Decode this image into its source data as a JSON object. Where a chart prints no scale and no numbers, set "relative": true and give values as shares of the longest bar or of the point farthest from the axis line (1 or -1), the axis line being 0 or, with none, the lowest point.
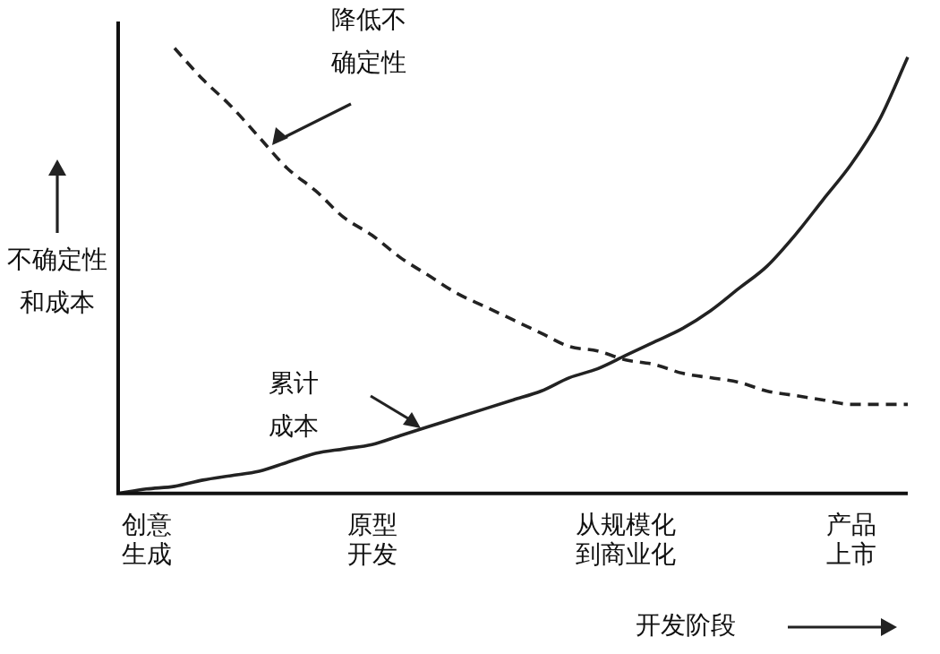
{
  "chart_data": {
    "type": "line",
    "relative": true,
    "xlabel": "开发阶段",
    "ylabel": "不确定性和成本",
    "categories": [
      null,
      "创意生成",
      null,
      null,
      null,
      null,
      null,
      null,
      null,
      "原型开发",
      null,
      null,
      null,
      null,
      null,
      null,
      null,
      null,
      "从规模化到商业化",
      null,
      null,
      null,
      null,
      null,
      null,
      null,
      "产品上市",
      null,
      null
    ],
    "series": [
      {
        "color": "#222222",
        "line_style": "dashed",
        "values": [
          null,
          null,
          1.0,
          0.93,
          0.87,
          0.8,
          0.73,
          0.68,
          0.62,
          0.58,
          0.53,
          0.49,
          0.45,
          0.42,
          0.39,
          0.36,
          0.33,
          0.32,
          0.3,
          0.29,
          0.27,
          0.26,
          0.25,
          0.23,
          0.22,
          0.21,
          0.2,
          0.2,
          0.2
        ]
      },
      {
        "color": "#222222",
        "line_style": "solid",
        "values": [
          0,
          0.01,
          0.016,
          0.03,
          0.04,
          0.05,
          0.07,
          0.09,
          0.1,
          0.11,
          0.13,
          0.15,
          0.17,
          0.19,
          0.21,
          0.23,
          0.26,
          0.28,
          0.31,
          0.34,
          0.37,
          0.41,
          0.46,
          0.51,
          0.58,
          0.66,
          0.74,
          0.84,
          0.98
        ]
      }
    ],
    "annotations": [
      "降低不确定性",
      "累计成本"
    ],
    "legend": false,
    "marker": "none"
  }
}
